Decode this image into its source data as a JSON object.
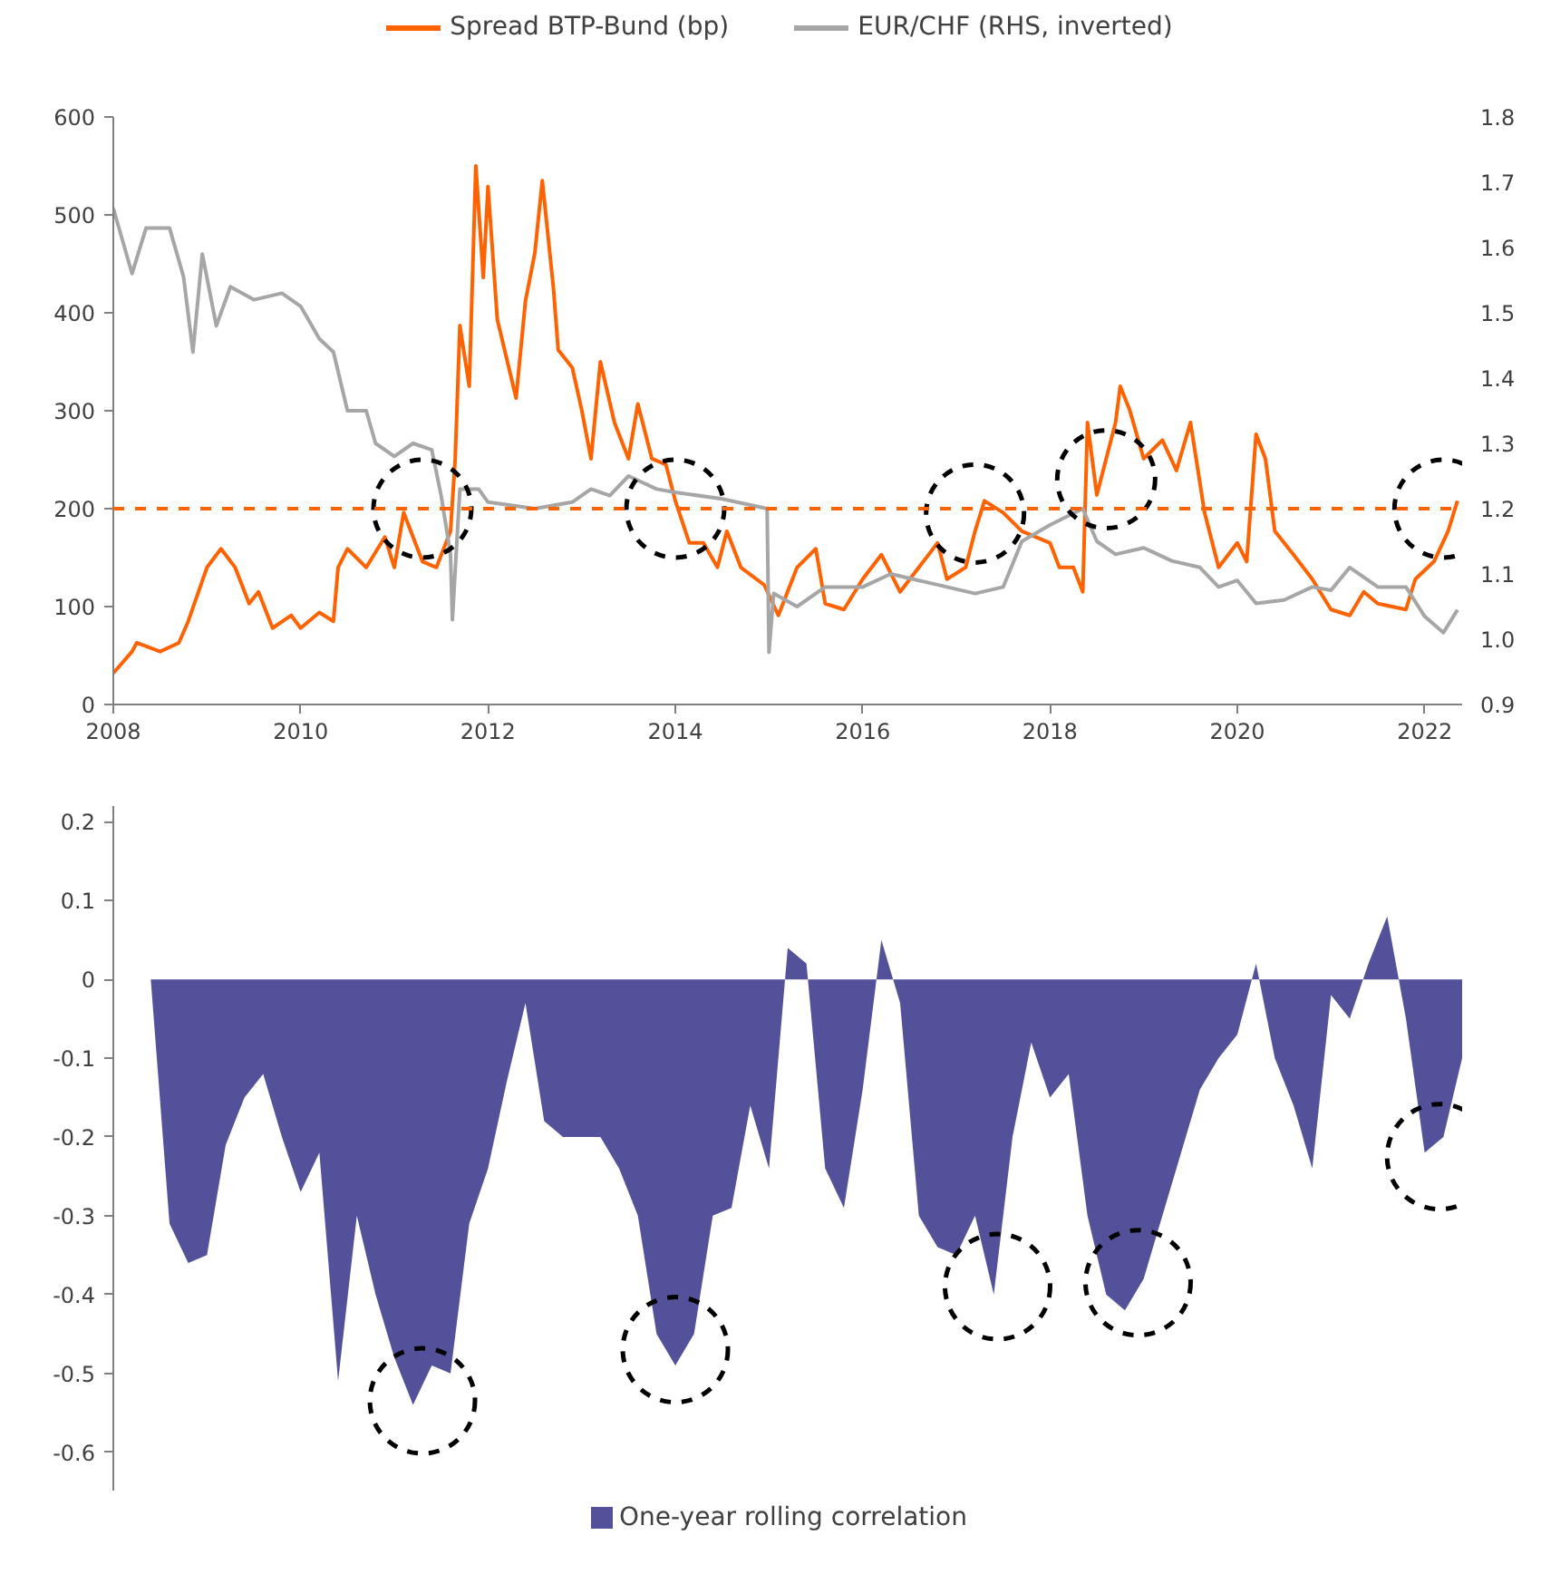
{
  "chart_data": [
    {
      "type": "line",
      "xlim": [
        2008,
        2022.4
      ],
      "xticks": [
        2008,
        2010,
        2012,
        2014,
        2016,
        2018,
        2020,
        2022
      ],
      "ylim": [
        0,
        600
      ],
      "yticks": [
        0,
        100,
        200,
        300,
        400,
        500,
        600
      ],
      "y2lim": [
        0.9,
        1.8
      ],
      "y2ticks": [
        0.9,
        {
          "value": 1,
          "label": "1.0"
        },
        1.1,
        1.2,
        1.3,
        1.4,
        1.5,
        1.6,
        1.7,
        1.8
      ],
      "grid": false,
      "legend": "top",
      "line_style": "solid",
      "ref_lines": [
        {
          "axis": "y",
          "value": 200,
          "color": "#ff6200",
          "line_style": "dashed",
          "label": null
        }
      ],
      "series": [
        {
          "name": "Spread BTP-Bund (bp)",
          "color": "#ff6200",
          "x": [
            2008.0,
            2008.2,
            2008.25,
            2008.5,
            2008.7,
            2008.8,
            2009.0,
            2009.15,
            2009.3,
            2009.45,
            2009.55,
            2009.7,
            2009.9,
            2010.0,
            2010.2,
            2010.35,
            2010.4,
            2010.5,
            2010.7,
            2010.9,
            2011.0,
            2011.1,
            2011.3,
            2011.45,
            2011.6,
            2011.65,
            2011.7,
            2011.8,
            2011.87,
            2011.95,
            2012.0,
            2012.1,
            2012.3,
            2012.4,
            2012.5,
            2012.58,
            2012.7,
            2012.75,
            2012.9,
            2013.0,
            2013.1,
            2013.2,
            2013.35,
            2013.5,
            2013.6,
            2013.75,
            2013.9,
            2014.0,
            2014.15,
            2014.3,
            2014.45,
            2014.55,
            2014.7,
            2014.95,
            2015.1,
            2015.3,
            2015.5,
            2015.6,
            2015.8,
            2016.0,
            2016.2,
            2016.4,
            2016.6,
            2016.8,
            2016.9,
            2017.1,
            2017.2,
            2017.3,
            2017.5,
            2017.7,
            2018.0,
            2018.1,
            2018.25,
            2018.35,
            2018.4,
            2018.5,
            2018.7,
            2018.75,
            2018.85,
            2019.0,
            2019.2,
            2019.35,
            2019.5,
            2019.65,
            2019.8,
            2020.0,
            2020.1,
            2020.2,
            2020.3,
            2020.4,
            2020.6,
            2020.8,
            2021.0,
            2021.2,
            2021.35,
            2021.5,
            2021.8,
            2021.9,
            2022.1,
            2022.25,
            2022.35
          ],
          "values": [
            32,
            54,
            63,
            54,
            63,
            85,
            140,
            159,
            140,
            103,
            115,
            78,
            91,
            78,
            94,
            85,
            140,
            159,
            140,
            171,
            140,
            196,
            146,
            140,
            177,
            251,
            387,
            325,
            550,
            436,
            529,
            393,
            313,
            412,
            461,
            535,
            424,
            362,
            344,
            301,
            251,
            350,
            288,
            251,
            307,
            251,
            245,
            208,
            165,
            165,
            140,
            177,
            140,
            122,
            91,
            140,
            159,
            103,
            97,
            128,
            153,
            115,
            140,
            165,
            128,
            140,
            177,
            208,
            196,
            177,
            165,
            140,
            140,
            115,
            288,
            214,
            288,
            325,
            301,
            251,
            270,
            239,
            288,
            196,
            140,
            165,
            146,
            276,
            251,
            177,
            153,
            128,
            97,
            91,
            115,
            103,
            97,
            128,
            146,
            177,
            208
          ]
        },
        {
          "name": "EUR/CHF (RHS, inverted)",
          "color": "#a6a6a6",
          "axis": "y2",
          "x": [
            2008.0,
            2008.1,
            2008.2,
            2008.35,
            2008.6,
            2008.75,
            2008.85,
            2008.95,
            2009.1,
            2009.25,
            2009.5,
            2009.8,
            2010.0,
            2010.2,
            2010.35,
            2010.5,
            2010.7,
            2010.8,
            2011.0,
            2011.2,
            2011.4,
            2011.5,
            2011.6,
            2011.62,
            2011.7,
            2011.9,
            2012.0,
            2012.5,
            2012.9,
            2013.1,
            2013.3,
            2013.5,
            2013.8,
            2014.0,
            2014.5,
            2014.98,
            2015.0,
            2015.05,
            2015.3,
            2015.6,
            2016.0,
            2016.3,
            2016.6,
            2016.9,
            2017.2,
            2017.5,
            2017.7,
            2018.0,
            2018.35,
            2018.5,
            2018.7,
            2019.0,
            2019.3,
            2019.6,
            2019.8,
            2020.0,
            2020.2,
            2020.5,
            2020.8,
            2021.0,
            2021.2,
            2021.5,
            2021.8,
            2022.0,
            2022.2,
            2022.35
          ],
          "values": [
            1.66,
            1.61,
            1.56,
            1.63,
            1.63,
            1.555,
            1.44,
            1.59,
            1.48,
            1.54,
            1.52,
            1.53,
            1.51,
            1.46,
            1.44,
            1.35,
            1.35,
            1.3,
            1.28,
            1.3,
            1.29,
            1.22,
            1.13,
            1.03,
            1.23,
            1.23,
            1.21,
            1.2,
            1.21,
            1.23,
            1.22,
            1.25,
            1.23,
            1.225,
            1.215,
            1.2,
            0.98,
            1.07,
            1.05,
            1.08,
            1.08,
            1.1,
            1.09,
            1.08,
            1.07,
            1.08,
            1.15,
            1.175,
            1.2,
            1.15,
            1.13,
            1.14,
            1.12,
            1.11,
            1.08,
            1.09,
            1.055,
            1.06,
            1.08,
            1.075,
            1.11,
            1.08,
            1.08,
            1.035,
            1.01,
            1.045
          ]
        }
      ]
    },
    {
      "type": "area",
      "categories": [
        null,
        null,
        null,
        null,
        null,
        null,
        null,
        null,
        null,
        null,
        null,
        null,
        null,
        null,
        null,
        null,
        null,
        null,
        null,
        null,
        null,
        null,
        null,
        null,
        null,
        null,
        null,
        null,
        null,
        null,
        null,
        null,
        null,
        null,
        null,
        null,
        null,
        null,
        null,
        null,
        null,
        null,
        null,
        null,
        null,
        null,
        null,
        null,
        null,
        null,
        null,
        null,
        null,
        null,
        null,
        null,
        null,
        null,
        null,
        null,
        null,
        null,
        null,
        null,
        null,
        null,
        null,
        null,
        null,
        null,
        null,
        null,
        null
      ],
      "ylim": [
        -0.65,
        0.22
      ],
      "yticks": [
        0.2,
        0.1,
        0,
        -0.1,
        -0.2,
        -0.3,
        -0.4,
        -0.5,
        -0.6
      ],
      "tick_labels": "y",
      "grid": false,
      "legend": "bottom",
      "series": [
        {
          "name": "One-year rolling correlation",
          "color": "#52519a",
          "values": [
            0,
            0,
            0,
            -0.31,
            -0.36,
            -0.35,
            -0.21,
            -0.15,
            -0.12,
            -0.2,
            -0.27,
            -0.22,
            -0.51,
            -0.3,
            -0.4,
            -0.48,
            -0.54,
            -0.49,
            -0.5,
            -0.31,
            -0.24,
            -0.13,
            -0.03,
            -0.18,
            -0.2,
            -0.2,
            -0.2,
            -0.24,
            -0.3,
            -0.45,
            -0.49,
            -0.45,
            -0.3,
            -0.29,
            -0.16,
            -0.24,
            0.04,
            0.02,
            -0.24,
            -0.29,
            -0.14,
            0.05,
            -0.03,
            -0.3,
            -0.34,
            -0.35,
            -0.3,
            -0.4,
            -0.2,
            -0.08,
            -0.15,
            -0.12,
            -0.3,
            -0.4,
            -0.42,
            -0.38,
            -0.3,
            -0.22,
            -0.14,
            -0.1,
            -0.07,
            0.02,
            -0.1,
            -0.16,
            -0.24,
            -0.02,
            -0.05,
            0.02,
            0.08,
            -0.05,
            -0.22,
            -0.2,
            -0.1
          ]
        }
      ]
    }
  ]
}
